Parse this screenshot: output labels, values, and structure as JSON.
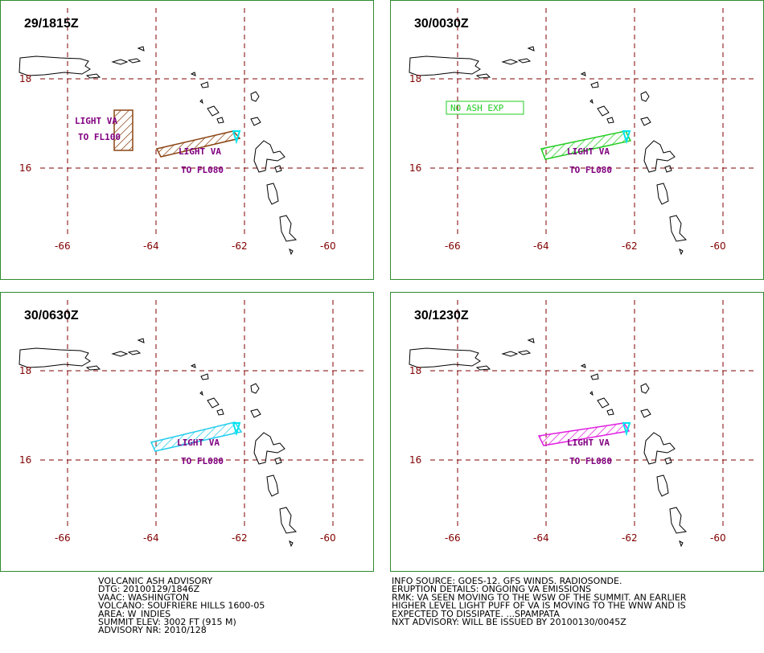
{
  "grid": {
    "lat": [
      "18",
      "16"
    ],
    "lon": [
      "-66",
      "-64",
      "-62",
      "-60"
    ]
  },
  "panels": [
    {
      "time": "29/1815Z",
      "annotations": [
        "LIGHT VA",
        "TO FL100",
        "LIGHT VA",
        "TO FL080"
      ]
    },
    {
      "time": "30/0030Z",
      "annotations": [
        "NO ASH EXP",
        "LIGHT VA",
        "TO FL080"
      ]
    },
    {
      "time": "30/0630Z",
      "annotations": [
        "LIGHT VA",
        "TO FL080"
      ]
    },
    {
      "time": "30/1230Z",
      "annotations": [
        "LIGHT VA",
        "TO FL080"
      ]
    }
  ],
  "footer": {
    "left": [
      "VOLCANIC ASH ADVISORY",
      "DTG: 20100129/1846Z",
      "VAAC: WASHINGTON",
      "VOLCANO: SOUFRIERE HILLS 1600-05",
      "AREA: W_INDIES",
      "SUMMIT ELEV: 3002 FT (915 M)",
      "ADVISORY NR: 2010/128"
    ],
    "right": [
      "INFO SOURCE: GOES-12. GFS WINDS. RADIOSONDE.",
      "ERUPTION DETAILS: ONGOING VA EMISSIONS",
      "RMK: VA SEEN MOVING TO THE WSW OF THE SUMMIT. AN EARLIER",
      "HIGHER LEVEL LIGHT PUFF OF VA IS MOVING TO THE WNW AND IS",
      "EXPECTED TO DISSIPATE. ...SPAMPATA",
      "NXT ADVISORY: WILL BE ISSUED BY 20100130/0045Z"
    ]
  }
}
